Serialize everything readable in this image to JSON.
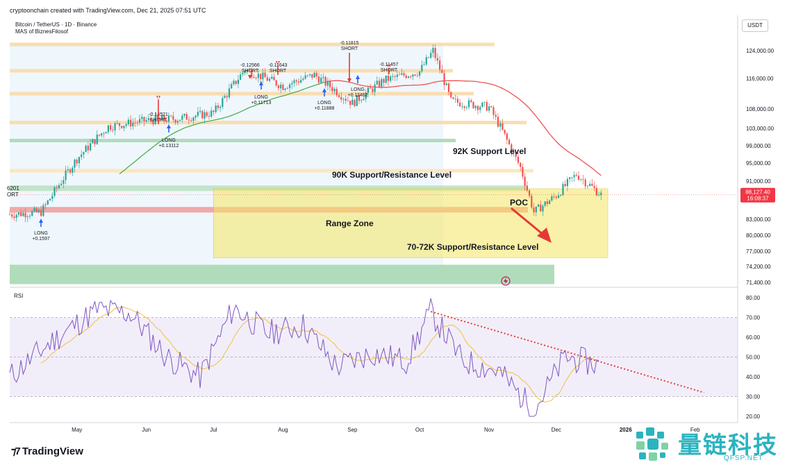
{
  "header": {
    "created_by": "cryptoonchain created with TradingView.com, Dec 21, 2025 07:51 UTC",
    "symbol": "Bitcoin / TetherUS · 1D · Binance",
    "indicator": "MAS of BiznesFilosof",
    "currency": "USDT"
  },
  "price_axis": {
    "labels": [
      "124,000.00",
      "116,000.00",
      "108,000.00",
      "103,000.00",
      "99,000.00",
      "95,000.00",
      "91,000.00",
      "83,000.00",
      "80,000.00",
      "77,000.00",
      "74,200.00",
      "71,400.00"
    ],
    "last_price": "88,127.40",
    "countdown": "16:08:37",
    "last_price_color": "#f23645"
  },
  "time_axis": {
    "labels": [
      "May",
      "Jun",
      "Jul",
      "Aug",
      "Sep",
      "Oct",
      "Nov",
      "Dec",
      "2026",
      "Feb"
    ]
  },
  "rsi_panel": {
    "title": "RSI",
    "labels": [
      "80.00",
      "70.00",
      "60.00",
      "50.00",
      "40.00",
      "30.00",
      "20.00"
    ]
  },
  "annotations": {
    "level_92k": "92K Support Level",
    "level_90k": "90K Support/Resistance Level",
    "range_zone": "Range Zone",
    "level_70_72k": "70-72K Support/Resistance Level",
    "poc": "POC",
    "left_cut_top": "6201",
    "left_cut_bottom": "ORT"
  },
  "signals": [
    {
      "label": "SHORT",
      "value": "-0.14521",
      "kind": "short"
    },
    {
      "label": "SHORT",
      "value": "-0.12566",
      "kind": "short"
    },
    {
      "label": "SHORT",
      "value": "-0.11643",
      "kind": "short"
    },
    {
      "label": "SHORT",
      "value": "-0.11815",
      "kind": "short"
    },
    {
      "label": "SHORT",
      "value": "-0.11457",
      "kind": "short"
    },
    {
      "label": "LONG",
      "value": "+0.1597",
      "kind": "long"
    },
    {
      "label": "LONG",
      "value": "+0.13112",
      "kind": "long"
    },
    {
      "label": "LONG",
      "value": "+0.11713",
      "kind": "long"
    },
    {
      "label": "LONG",
      "value": "+0.11888",
      "kind": "long"
    },
    {
      "label": "LONG",
      "value": "+0.11462",
      "kind": "long"
    }
  ],
  "brand": {
    "tradingview": "TradingView",
    "watermark_cn": "量链科技",
    "watermark_en": "QFSP.NET"
  },
  "colors": {
    "bullish": "#26a69a",
    "bearish": "#ef5350",
    "ma_green": "#4caf50",
    "ma_red": "#ef5350",
    "range_zone": "#f5e663",
    "rsi_line": "#7e57c2",
    "rsi_ma": "#f0c040",
    "trendline": "#e53935",
    "brand": "#2bb3c0"
  },
  "chart_data": {
    "type": "candlestick",
    "title": "Bitcoin / TetherUS · 1D · Binance",
    "ylim": [
      70000,
      128000
    ],
    "x_range": [
      "2025-04-01",
      "2026-02-20"
    ],
    "price_series": {
      "name": "BTCUSDT",
      "dates": [
        "2025-04-01",
        "2025-04-15",
        "2025-05-01",
        "2025-05-15",
        "2025-06-01",
        "2025-06-15",
        "2025-07-01",
        "2025-07-15",
        "2025-08-01",
        "2025-08-15",
        "2025-09-01",
        "2025-09-15",
        "2025-10-01",
        "2025-10-07",
        "2025-10-15",
        "2025-11-01",
        "2025-11-15",
        "2025-11-21",
        "2025-12-01",
        "2025-12-10",
        "2025-12-21"
      ],
      "close": [
        84000,
        84500,
        96000,
        103500,
        105000,
        105500,
        107000,
        118500,
        114000,
        117000,
        109500,
        115500,
        118000,
        124000,
        110000,
        108500,
        94000,
        84500,
        88000,
        92500,
        88127.4
      ]
    },
    "horizontal_levels": [
      {
        "price": 125800,
        "type": "resistance"
      },
      {
        "price": 118200,
        "type": "resistance"
      },
      {
        "price": 112000,
        "type": "resistance"
      },
      {
        "price": 104500,
        "type": "resistance"
      },
      {
        "price": 100200,
        "type": "support"
      },
      {
        "price": 93300,
        "type": "support",
        "label": "92K Support Level"
      },
      {
        "price": 89500,
        "type": "support/resistance",
        "label": "90K Support/Resistance Level"
      },
      {
        "price": 85000,
        "type": "support"
      },
      {
        "price": 72800,
        "type": "support/resistance",
        "label": "70-72K Support/Resistance Level"
      }
    ],
    "range_zone": {
      "from": "2025-07-01",
      "to": "2025-12-24",
      "low": 75800,
      "high": 89400
    },
    "rsi": {
      "ylim": [
        18,
        82
      ],
      "levels": [
        70,
        50,
        30
      ],
      "dates": [
        "2025-04-01",
        "2025-04-20",
        "2025-05-10",
        "2025-05-25",
        "2025-06-10",
        "2025-06-25",
        "2025-07-10",
        "2025-07-25",
        "2025-08-10",
        "2025-08-25",
        "2025-09-10",
        "2025-09-25",
        "2025-10-06",
        "2025-10-20",
        "2025-11-05",
        "2025-11-21",
        "2025-12-05",
        "2025-12-20"
      ],
      "values": [
        40,
        58,
        74,
        72,
        50,
        40,
        75,
        62,
        66,
        45,
        52,
        48,
        73,
        48,
        43,
        23,
        50,
        46
      ]
    },
    "rsi_trendline": {
      "from": [
        "2025-10-06",
        73
      ],
      "to": [
        "2026-02-05",
        32
      ]
    }
  }
}
